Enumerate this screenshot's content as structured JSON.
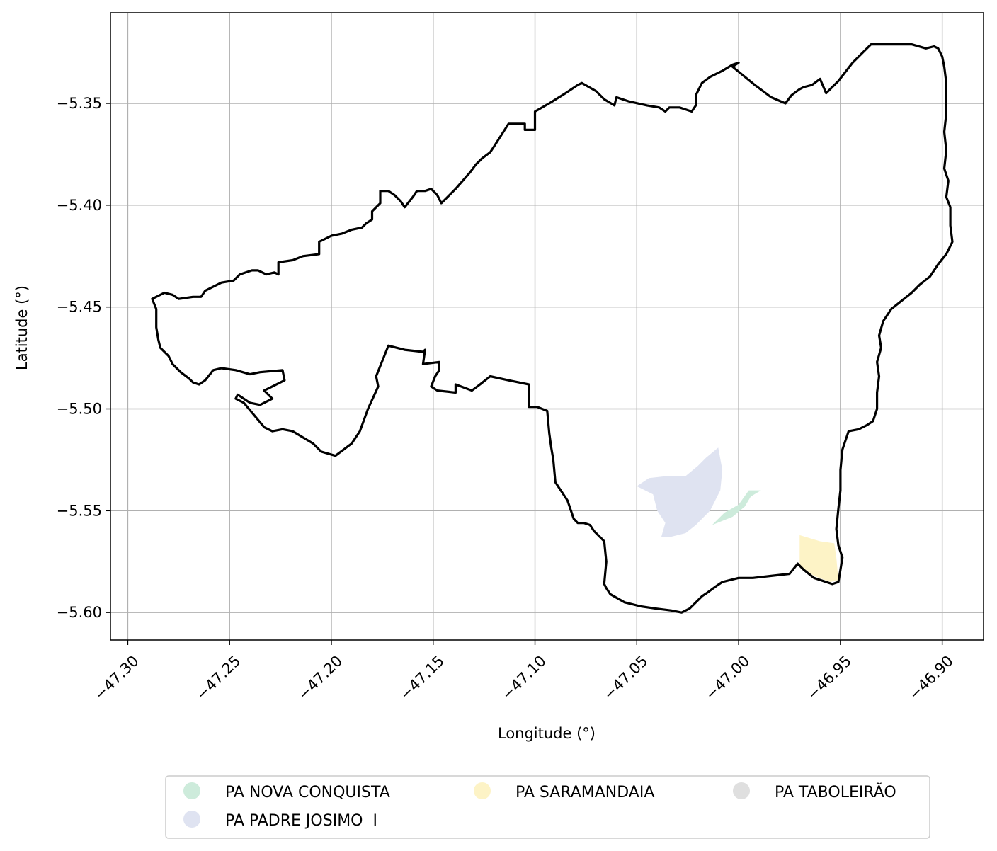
{
  "chart_data": {
    "type": "map",
    "xlabel": "Longitude (°)",
    "ylabel": "Latitude (°)",
    "xlim": [
      -47.3085,
      -46.8797
    ],
    "ylim": [
      -5.6135,
      -5.3055
    ],
    "x_ticks": [
      {
        "value": -47.3,
        "label": "−47.30"
      },
      {
        "value": -47.25,
        "label": "−47.25"
      },
      {
        "value": -47.2,
        "label": "−47.20"
      },
      {
        "value": -47.15,
        "label": "−47.15"
      },
      {
        "value": -47.1,
        "label": "−47.10"
      },
      {
        "value": -47.05,
        "label": "−47.05"
      },
      {
        "value": -47.0,
        "label": "−47.00"
      },
      {
        "value": -46.95,
        "label": "−46.95"
      },
      {
        "value": -46.9,
        "label": "−46.90"
      }
    ],
    "y_ticks": [
      {
        "value": -5.35,
        "label": "−5.35"
      },
      {
        "value": -5.4,
        "label": "−5.40"
      },
      {
        "value": -5.45,
        "label": "−5.45"
      },
      {
        "value": -5.5,
        "label": "−5.50"
      },
      {
        "value": -5.55,
        "label": "−5.55"
      },
      {
        "value": -5.6,
        "label": "−5.60"
      }
    ],
    "grid": true,
    "legend_position": "bottom-center",
    "boundary": {
      "color": "#000000",
      "points": [
        [
          -47.288,
          -5.446
        ],
        [
          -47.282,
          -5.443
        ],
        [
          -47.278,
          -5.444
        ],
        [
          -47.275,
          -5.446
        ],
        [
          -47.268,
          -5.445
        ],
        [
          -47.264,
          -5.445
        ],
        [
          -47.262,
          -5.442
        ],
        [
          -47.258,
          -5.44
        ],
        [
          -47.254,
          -5.438
        ],
        [
          -47.248,
          -5.437
        ],
        [
          -47.245,
          -5.434
        ],
        [
          -47.239,
          -5.432
        ],
        [
          -47.236,
          -5.432
        ],
        [
          -47.232,
          -5.434
        ],
        [
          -47.228,
          -5.433
        ],
        [
          -47.226,
          -5.434
        ],
        [
          -47.226,
          -5.428
        ],
        [
          -47.219,
          -5.427
        ],
        [
          -47.214,
          -5.425
        ],
        [
          -47.206,
          -5.424
        ],
        [
          -47.206,
          -5.418
        ],
        [
          -47.2,
          -5.415
        ],
        [
          -47.195,
          -5.414
        ],
        [
          -47.19,
          -5.412
        ],
        [
          -47.185,
          -5.411
        ],
        [
          -47.183,
          -5.409
        ],
        [
          -47.18,
          -5.407
        ],
        [
          -47.18,
          -5.403
        ],
        [
          -47.176,
          -5.399
        ],
        [
          -47.176,
          -5.393
        ],
        [
          -47.172,
          -5.393
        ],
        [
          -47.169,
          -5.395
        ],
        [
          -47.166,
          -5.398
        ],
        [
          -47.164,
          -5.401
        ],
        [
          -47.16,
          -5.396
        ],
        [
          -47.158,
          -5.393
        ],
        [
          -47.154,
          -5.393
        ],
        [
          -47.151,
          -5.392
        ],
        [
          -47.148,
          -5.395
        ],
        [
          -47.146,
          -5.399
        ],
        [
          -47.139,
          -5.392
        ],
        [
          -47.132,
          -5.384
        ],
        [
          -47.129,
          -5.38
        ],
        [
          -47.126,
          -5.377
        ],
        [
          -47.122,
          -5.374
        ],
        [
          -47.12,
          -5.371
        ],
        [
          -47.113,
          -5.36
        ],
        [
          -47.105,
          -5.36
        ],
        [
          -47.105,
          -5.363
        ],
        [
          -47.1,
          -5.363
        ],
        [
          -47.1,
          -5.354
        ],
        [
          -47.093,
          -5.35
        ],
        [
          -47.085,
          -5.345
        ],
        [
          -47.079,
          -5.341
        ],
        [
          -47.077,
          -5.34
        ],
        [
          -47.07,
          -5.344
        ],
        [
          -47.066,
          -5.348
        ],
        [
          -47.061,
          -5.351
        ],
        [
          -47.06,
          -5.347
        ],
        [
          -47.054,
          -5.349
        ],
        [
          -47.045,
          -5.351
        ],
        [
          -47.039,
          -5.352
        ],
        [
          -47.036,
          -5.354
        ],
        [
          -47.034,
          -5.352
        ],
        [
          -47.029,
          -5.352
        ],
        [
          -47.026,
          -5.353
        ],
        [
          -47.023,
          -5.354
        ],
        [
          -47.021,
          -5.351
        ],
        [
          -47.021,
          -5.346
        ],
        [
          -47.018,
          -5.34
        ],
        [
          -47.014,
          -5.337
        ],
        [
          -47.008,
          -5.334
        ],
        [
          -47.003,
          -5.331
        ],
        [
          -47.0,
          -5.33
        ],
        [
          -47.003,
          -5.332
        ],
        [
          -46.992,
          -5.341
        ],
        [
          -46.984,
          -5.347
        ],
        [
          -46.977,
          -5.35
        ],
        [
          -46.974,
          -5.346
        ],
        [
          -46.97,
          -5.343
        ],
        [
          -46.968,
          -5.342
        ],
        [
          -46.964,
          -5.341
        ],
        [
          -46.96,
          -5.338
        ],
        [
          -46.957,
          -5.345
        ],
        [
          -46.951,
          -5.339
        ],
        [
          -46.944,
          -5.33
        ],
        [
          -46.94,
          -5.326
        ],
        [
          -46.935,
          -5.321
        ],
        [
          -46.928,
          -5.321
        ],
        [
          -46.915,
          -5.321
        ],
        [
          -46.908,
          -5.323
        ],
        [
          -46.904,
          -5.322
        ],
        [
          -46.902,
          -5.323
        ],
        [
          -46.9,
          -5.327
        ],
        [
          -46.899,
          -5.332
        ],
        [
          -46.898,
          -5.34
        ],
        [
          -46.898,
          -5.348
        ],
        [
          -46.898,
          -5.355
        ],
        [
          -46.899,
          -5.364
        ],
        [
          -46.898,
          -5.373
        ],
        [
          -46.899,
          -5.382
        ],
        [
          -46.897,
          -5.388
        ],
        [
          -46.898,
          -5.396
        ],
        [
          -46.896,
          -5.401
        ],
        [
          -46.896,
          -5.41
        ],
        [
          -46.895,
          -5.418
        ],
        [
          -46.898,
          -5.424
        ],
        [
          -46.902,
          -5.429
        ],
        [
          -46.906,
          -5.435
        ],
        [
          -46.911,
          -5.439
        ],
        [
          -46.915,
          -5.443
        ],
        [
          -46.92,
          -5.447
        ],
        [
          -46.925,
          -5.451
        ],
        [
          -46.929,
          -5.457
        ],
        [
          -46.931,
          -5.464
        ],
        [
          -46.93,
          -5.47
        ],
        [
          -46.932,
          -5.477
        ],
        [
          -46.931,
          -5.484
        ],
        [
          -46.932,
          -5.492
        ],
        [
          -46.932,
          -5.5
        ],
        [
          -46.934,
          -5.506
        ],
        [
          -46.937,
          -5.508
        ],
        [
          -46.941,
          -5.51
        ],
        [
          -46.946,
          -5.511
        ],
        [
          -46.949,
          -5.52
        ],
        [
          -46.95,
          -5.53
        ],
        [
          -46.95,
          -5.54
        ],
        [
          -46.951,
          -5.549
        ],
        [
          -46.952,
          -5.559
        ],
        [
          -46.951,
          -5.567
        ],
        [
          -46.949,
          -5.573
        ],
        [
          -46.95,
          -5.579
        ],
        [
          -46.951,
          -5.585
        ],
        [
          -46.954,
          -5.586
        ],
        [
          -46.963,
          -5.583
        ],
        [
          -46.968,
          -5.579
        ],
        [
          -46.971,
          -5.576
        ],
        [
          -46.975,
          -5.581
        ],
        [
          -46.984,
          -5.582
        ],
        [
          -46.993,
          -5.583
        ],
        [
          -47.0,
          -5.583
        ],
        [
          -47.008,
          -5.585
        ],
        [
          -47.011,
          -5.587
        ],
        [
          -47.015,
          -5.59
        ],
        [
          -47.018,
          -5.592
        ],
        [
          -47.024,
          -5.598
        ],
        [
          -47.028,
          -5.6
        ],
        [
          -47.033,
          -5.599
        ],
        [
          -47.041,
          -5.598
        ],
        [
          -47.048,
          -5.597
        ],
        [
          -47.056,
          -5.595
        ],
        [
          -47.063,
          -5.591
        ],
        [
          -47.065,
          -5.588
        ],
        [
          -47.066,
          -5.586
        ],
        [
          -47.065,
          -5.575
        ],
        [
          -47.066,
          -5.565
        ],
        [
          -47.069,
          -5.562
        ],
        [
          -47.071,
          -5.56
        ],
        [
          -47.073,
          -5.557
        ],
        [
          -47.076,
          -5.556
        ],
        [
          -47.079,
          -5.556
        ],
        [
          -47.081,
          -5.554
        ],
        [
          -47.084,
          -5.545
        ],
        [
          -47.09,
          -5.536
        ],
        [
          -47.091,
          -5.525
        ],
        [
          -47.092,
          -5.519
        ],
        [
          -47.093,
          -5.512
        ],
        [
          -47.094,
          -5.501
        ],
        [
          -47.099,
          -5.499
        ],
        [
          -47.103,
          -5.499
        ],
        [
          -47.103,
          -5.488
        ],
        [
          -47.108,
          -5.487
        ],
        [
          -47.113,
          -5.486
        ],
        [
          -47.122,
          -5.484
        ],
        [
          -47.127,
          -5.488
        ],
        [
          -47.131,
          -5.491
        ],
        [
          -47.139,
          -5.488
        ],
        [
          -47.139,
          -5.492
        ],
        [
          -47.148,
          -5.491
        ],
        [
          -47.151,
          -5.489
        ],
        [
          -47.149,
          -5.484
        ],
        [
          -47.147,
          -5.481
        ],
        [
          -47.147,
          -5.477
        ],
        [
          -47.155,
          -5.478
        ],
        [
          -47.154,
          -5.471
        ],
        [
          -47.155,
          -5.472
        ],
        [
          -47.164,
          -5.471
        ],
        [
          -47.172,
          -5.469
        ],
        [
          -47.178,
          -5.484
        ],
        [
          -47.177,
          -5.489
        ],
        [
          -47.182,
          -5.5
        ],
        [
          -47.186,
          -5.511
        ],
        [
          -47.19,
          -5.517
        ],
        [
          -47.198,
          -5.523
        ],
        [
          -47.205,
          -5.521
        ],
        [
          -47.209,
          -5.517
        ],
        [
          -47.214,
          -5.514
        ],
        [
          -47.219,
          -5.511
        ],
        [
          -47.224,
          -5.51
        ],
        [
          -47.229,
          -5.511
        ],
        [
          -47.233,
          -5.509
        ],
        [
          -47.238,
          -5.503
        ],
        [
          -47.243,
          -5.497
        ],
        [
          -47.247,
          -5.495
        ],
        [
          -47.246,
          -5.493
        ],
        [
          -47.24,
          -5.497
        ],
        [
          -47.235,
          -5.498
        ],
        [
          -47.229,
          -5.495
        ],
        [
          -47.233,
          -5.491
        ],
        [
          -47.223,
          -5.486
        ],
        [
          -47.224,
          -5.481
        ],
        [
          -47.235,
          -5.482
        ],
        [
          -47.24,
          -5.483
        ],
        [
          -47.247,
          -5.481
        ],
        [
          -47.254,
          -5.48
        ],
        [
          -47.258,
          -5.481
        ],
        [
          -47.262,
          -5.486
        ],
        [
          -47.265,
          -5.488
        ],
        [
          -47.268,
          -5.487
        ],
        [
          -47.27,
          -5.485
        ],
        [
          -47.274,
          -5.482
        ],
        [
          -47.278,
          -5.478
        ],
        [
          -47.28,
          -5.474
        ],
        [
          -47.284,
          -5.47
        ],
        [
          -47.285,
          -5.466
        ],
        [
          -47.286,
          -5.46
        ],
        [
          -47.286,
          -5.451
        ],
        [
          -47.288,
          -5.446
        ]
      ]
    },
    "areas": [
      {
        "name": "PA NOVA CONQUISTA",
        "color": "#cdebdb",
        "points": [
          [
            -47.013,
            -5.557
          ],
          [
            -47.008,
            -5.555
          ],
          [
            -47.003,
            -5.553
          ],
          [
            -46.997,
            -5.548
          ],
          [
            -46.994,
            -5.543
          ],
          [
            -46.989,
            -5.54
          ],
          [
            -46.995,
            -5.54
          ],
          [
            -47.0,
            -5.547
          ],
          [
            -47.007,
            -5.551
          ],
          [
            -47.013,
            -5.557
          ]
        ]
      },
      {
        "name": "PA PADRE JOSIMO  I",
        "color": "#dfe3f1",
        "points": [
          [
            -47.05,
            -5.538
          ],
          [
            -47.044,
            -5.534
          ],
          [
            -47.035,
            -5.533
          ],
          [
            -47.026,
            -5.533
          ],
          [
            -47.02,
            -5.528
          ],
          [
            -47.016,
            -5.524
          ],
          [
            -47.01,
            -5.519
          ],
          [
            -47.008,
            -5.53
          ],
          [
            -47.009,
            -5.54
          ],
          [
            -47.014,
            -5.55
          ],
          [
            -47.021,
            -5.557
          ],
          [
            -47.026,
            -5.561
          ],
          [
            -47.034,
            -5.563
          ],
          [
            -47.038,
            -5.563
          ],
          [
            -47.036,
            -5.556
          ],
          [
            -47.04,
            -5.55
          ],
          [
            -47.042,
            -5.542
          ],
          [
            -47.05,
            -5.538
          ]
        ]
      },
      {
        "name": "PA SARAMANDAIA",
        "color": "#fdf3c6",
        "points": [
          [
            -46.97,
            -5.562
          ],
          [
            -46.96,
            -5.565
          ],
          [
            -46.953,
            -5.566
          ],
          [
            -46.952,
            -5.573
          ],
          [
            -46.951,
            -5.584
          ],
          [
            -46.955,
            -5.585
          ],
          [
            -46.963,
            -5.582
          ],
          [
            -46.97,
            -5.577
          ],
          [
            -46.97,
            -5.562
          ]
        ]
      },
      {
        "name": "PA TABOLEIRÃO",
        "color": "#dfdfdf",
        "points": []
      }
    ]
  }
}
